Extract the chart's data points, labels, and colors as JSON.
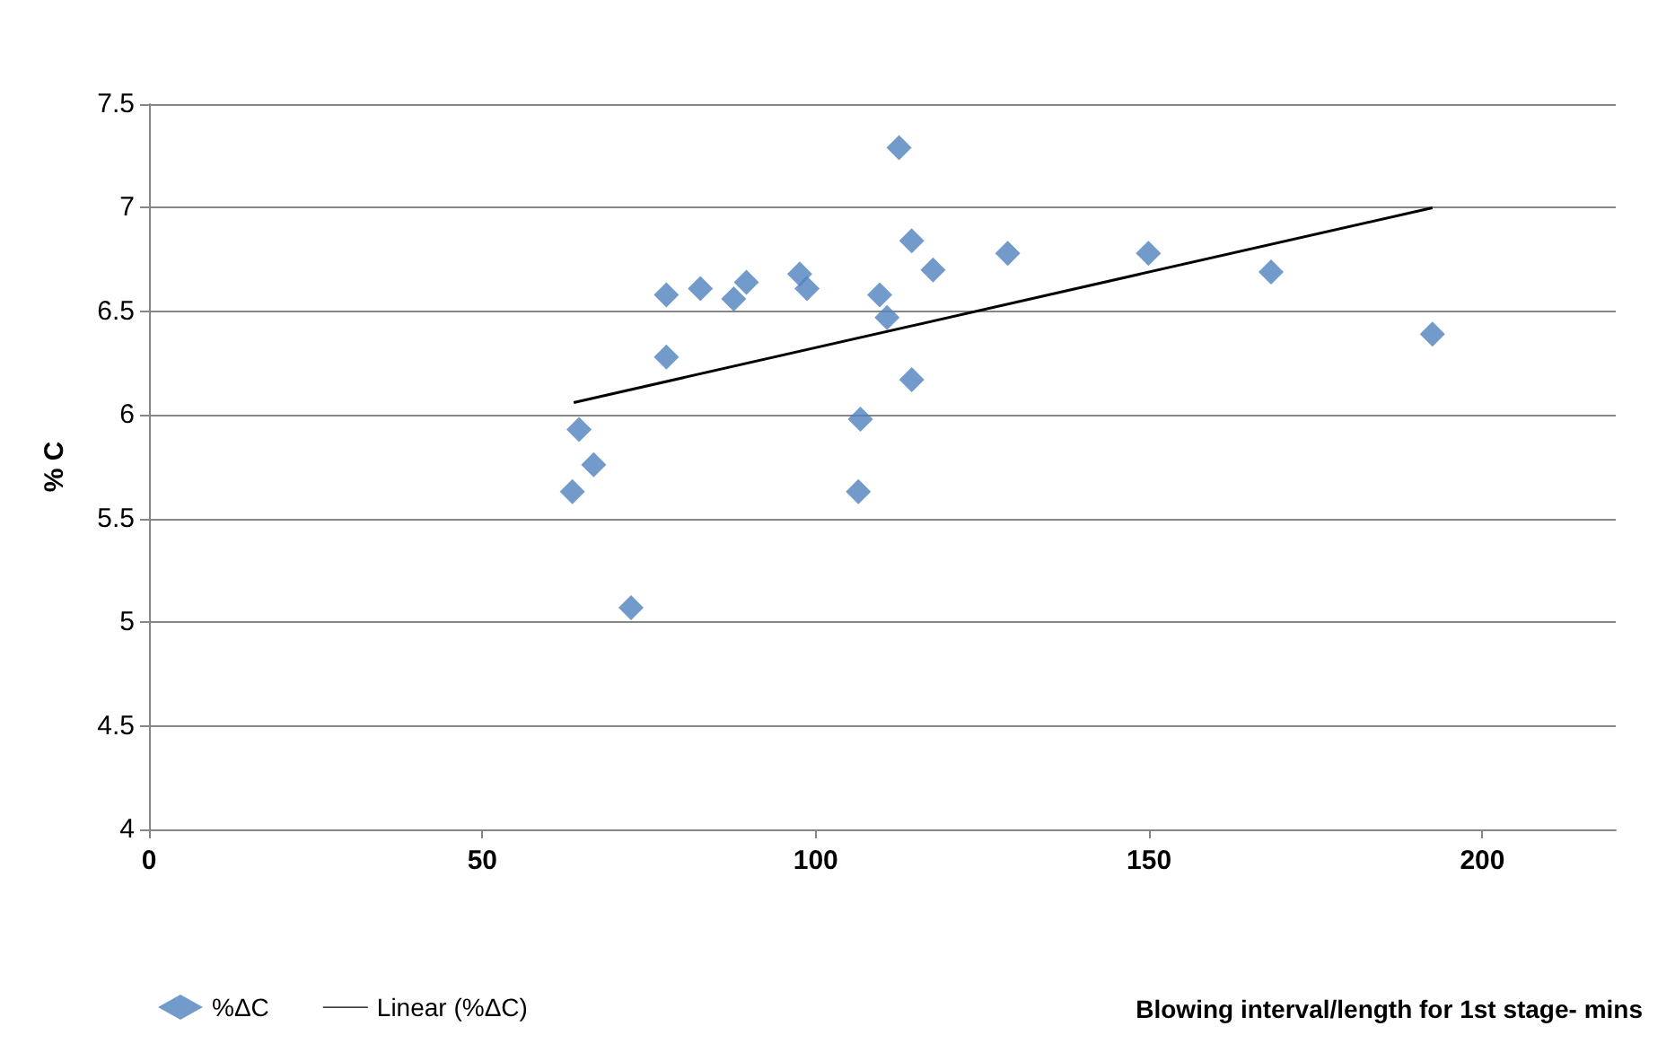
{
  "chart_data": {
    "type": "scatter",
    "xlabel": "Blowing interval/length for 1st stage- mins",
    "ylabel": "% C",
    "xlim": [
      0,
      220
    ],
    "xticks": [
      0,
      50,
      100,
      150,
      200
    ],
    "ylim": [
      4,
      7.5
    ],
    "yticks": [
      4,
      4.5,
      5,
      5.5,
      6,
      6.5,
      7,
      7.5
    ],
    "grid": "y",
    "legend": "bottom left",
    "series": [
      {
        "name": "%ΔC",
        "marker": "diamond",
        "color": "#4f81bd",
        "x": [
          63.5,
          64.5,
          66.7,
          72.3,
          77.6,
          77.6,
          82.7,
          87.7,
          89.6,
          97.6,
          98.7,
          106.7,
          106.4,
          109.6,
          110.7,
          112.5,
          114.4,
          114.4,
          117.6,
          128.8,
          149.9,
          168.3,
          192.5
        ],
        "values": [
          5.63,
          5.93,
          5.76,
          5.07,
          6.58,
          6.28,
          6.61,
          6.56,
          6.64,
          6.68,
          6.61,
          5.98,
          5.63,
          6.58,
          6.47,
          7.29,
          6.84,
          6.17,
          6.7,
          6.78,
          6.78,
          6.69,
          6.39
        ]
      },
      {
        "name": "Linear (%ΔC)",
        "type": "line",
        "marker": "none",
        "color": "#000000",
        "x": [
          63.7,
          192.5
        ],
        "values": [
          6.06,
          7.0
        ]
      }
    ]
  }
}
